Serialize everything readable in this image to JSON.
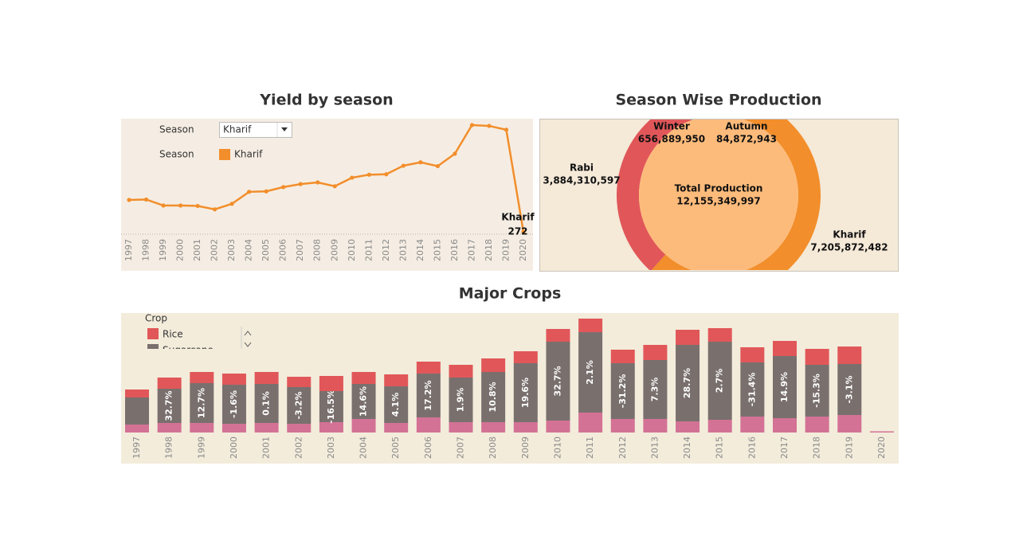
{
  "chart_data": [
    {
      "type": "line",
      "title": "Yield by season",
      "filter": {
        "label": "Season",
        "value": "Kharif"
      },
      "legend_title": "Season",
      "categories": [
        "1997",
        "1998",
        "1999",
        "2000",
        "2001",
        "2002",
        "2003",
        "2004",
        "2005",
        "2006",
        "2007",
        "2008",
        "2009",
        "2010",
        "2011",
        "2012",
        "2013",
        "2014",
        "2015",
        "2016",
        "2017",
        "2018",
        "2019",
        "2020"
      ],
      "series": [
        {
          "name": "Kharif",
          "color": "#f28e2b",
          "values": [
            4000,
            4050,
            3350,
            3350,
            3300,
            2900,
            3550,
            4950,
            5000,
            5500,
            5850,
            6050,
            5600,
            6600,
            6950,
            7000,
            8000,
            8400,
            7950,
            9400,
            12750,
            12650,
            12200,
            272
          ]
        }
      ]
    },
    {
      "type": "pie",
      "title": "Season Wise Production",
      "categories": [
        "Autumn",
        "Kharif",
        "Rabi",
        "Winter"
      ],
      "values": [
        84872943,
        7205872482,
        3884310597,
        656889950
      ],
      "value_labels": [
        "84,872,943",
        "7,205,872,482",
        "3,884,310,597",
        "656,889,950"
      ],
      "colors": [
        "#f5a04a",
        "#f28e2b",
        "#e15759",
        "#76b7b2"
      ],
      "center_label": {
        "text": "Total Production",
        "value": 12155349997,
        "value_label": "12,155,349,997"
      }
    },
    {
      "type": "stacked_bar",
      "title": "Major Crops",
      "legend_title": "Crop",
      "categories": [
        "1997",
        "1998",
        "1999",
        "2000",
        "2001",
        "2002",
        "2003",
        "2004",
        "2005",
        "2006",
        "2007",
        "2008",
        "2009",
        "2010",
        "2011",
        "2012",
        "2013",
        "2014",
        "2015",
        "2016",
        "2017",
        "2018",
        "2019",
        "2020"
      ],
      "series": [
        {
          "name": "Rice",
          "color": "#e15759",
          "values": [
            10,
            14,
            14,
            14,
            15,
            13,
            19,
            15,
            15,
            15,
            16,
            17,
            15,
            16,
            17,
            17,
            19,
            19,
            17,
            19,
            19,
            20,
            22,
            0
          ]
        },
        {
          "name": "Sugarcane",
          "color": "#79706e",
          "values": [
            34,
            43,
            50,
            49,
            49,
            46,
            39,
            44,
            46,
            55,
            56,
            63,
            74,
            99,
            101,
            70,
            74,
            96,
            98,
            68,
            78,
            65,
            64,
            0
          ]
        },
        {
          "name": null,
          "color": "#d37295",
          "values": [
            10,
            12,
            12,
            11,
            12,
            11,
            13,
            17,
            12,
            19,
            13,
            13,
            13,
            15,
            25,
            17,
            17,
            14,
            16,
            20,
            18,
            20,
            22,
            1.5
          ]
        }
      ],
      "change_labels": [
        null,
        "32.7%",
        "12.7%",
        "-1.6%",
        "0.1%",
        "-3.2%",
        "-16.5%",
        "14.6%",
        "4.1%",
        "17.2%",
        "1.9%",
        "10.8%",
        "19.6%",
        "32.7%",
        "2.1%",
        "-31.2%",
        "7.3%",
        "28.7%",
        "2.7%",
        "-31.4%",
        "14.9%",
        "-15.3%",
        "-3.1%",
        null
      ]
    }
  ]
}
